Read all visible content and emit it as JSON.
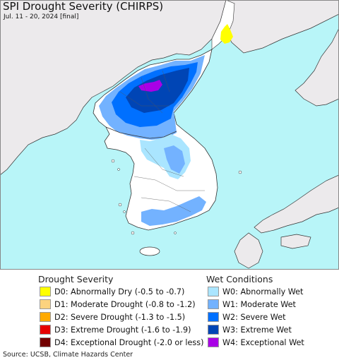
{
  "title": "SPI Drought Severity (CHIRPS)",
  "subtitle": "Jul. 11 - 20, 2024 [final]",
  "colors": {
    "sea": "#b8f5f8",
    "land_other": "#eceaec",
    "land_korea": "#ffffff",
    "border": "#333333"
  },
  "legend": {
    "drought": {
      "heading": "Drought Severity",
      "items": [
        {
          "label": "D0: Abnormally Dry (-0.5 to -0.7)",
          "color": "#ffff00"
        },
        {
          "label": "D1: Moderate Drought (-0.8 to -1.2)",
          "color": "#fcd37f"
        },
        {
          "label": "D2: Severe Drought (-1.3 to -1.5)",
          "color": "#ffaa00"
        },
        {
          "label": "D3: Extreme Drought (-1.6 to -1.9)",
          "color": "#e60000"
        },
        {
          "label": "D4: Exceptional Drought (-2.0 or less)",
          "color": "#730000"
        }
      ]
    },
    "wet": {
      "heading": "Wet Conditions",
      "items": [
        {
          "label": "W0: Abnormally Wet",
          "color": "#aae5ff"
        },
        {
          "label": "W1: Moderate Wet",
          "color": "#73b2ff"
        },
        {
          "label": "W2: Severe Wet",
          "color": "#0070ff"
        },
        {
          "label": "W3: Extreme Wet",
          "color": "#0045b5"
        },
        {
          "label": "W4: Exceptional Wet",
          "color": "#a900e6"
        }
      ]
    }
  },
  "source": "Source: UCSB, Climate Hazards Center"
}
